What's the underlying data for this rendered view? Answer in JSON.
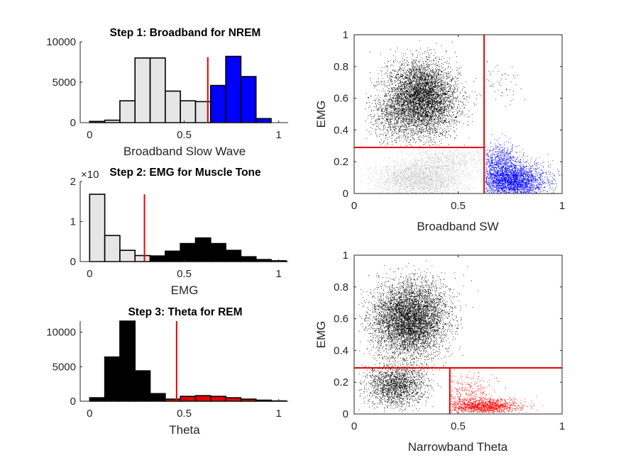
{
  "chart_data": [
    {
      "id": "h1",
      "type": "bar",
      "title": "Step 1: Broadband for NREM",
      "xlabel": "Broadband Slow Wave",
      "ylabel": "",
      "xlim": [
        -0.05,
        1.05
      ],
      "ylim": [
        0,
        10000
      ],
      "xticks": [
        "0",
        "0.5",
        "1"
      ],
      "yticks": [
        "0",
        "5000",
        "10000"
      ],
      "bin_width": 0.08,
      "threshold": 0.625,
      "threshold_color": "#e60000",
      "bins": [
        {
          "x": 0.04,
          "value": 150,
          "color": "#e6e6e6"
        },
        {
          "x": 0.12,
          "value": 300,
          "color": "#e6e6e6"
        },
        {
          "x": 0.2,
          "value": 2700,
          "color": "#e6e6e6"
        },
        {
          "x": 0.28,
          "value": 8000,
          "color": "#e6e6e6"
        },
        {
          "x": 0.36,
          "value": 8000,
          "color": "#e6e6e6"
        },
        {
          "x": 0.44,
          "value": 3900,
          "color": "#e6e6e6"
        },
        {
          "x": 0.52,
          "value": 2700,
          "color": "#e6e6e6"
        },
        {
          "x": 0.6,
          "value": 2600,
          "color": "#e6e6e6"
        },
        {
          "x": 0.68,
          "value": 4600,
          "color": "#0000ff"
        },
        {
          "x": 0.76,
          "value": 8200,
          "color": "#0000ff"
        },
        {
          "x": 0.84,
          "value": 5700,
          "color": "#0000ff"
        },
        {
          "x": 0.92,
          "value": 500,
          "color": "#0000ff"
        }
      ]
    },
    {
      "id": "h2",
      "type": "bar",
      "title": "Step 2: EMG for Muscle Tone",
      "exponent_label": "×10",
      "xlabel": "EMG",
      "ylabel": "",
      "xlim": [
        -0.05,
        1.05
      ],
      "ylim": [
        0,
        2
      ],
      "xticks": [
        "0",
        "0.5",
        "1"
      ],
      "yticks": [
        "0",
        "1",
        "2"
      ],
      "bin_width": 0.08,
      "threshold": 0.29,
      "threshold_color": "#e60000",
      "bins": [
        {
          "x": 0.04,
          "value": 1.68,
          "color": "#e6e6e6"
        },
        {
          "x": 0.12,
          "value": 0.65,
          "color": "#e6e6e6"
        },
        {
          "x": 0.2,
          "value": 0.28,
          "color": "#e6e6e6"
        },
        {
          "x": 0.28,
          "value": 0.15,
          "color": "#e6e6e6"
        },
        {
          "x": 0.36,
          "value": 0.14,
          "color": "#000000"
        },
        {
          "x": 0.44,
          "value": 0.26,
          "color": "#000000"
        },
        {
          "x": 0.52,
          "value": 0.45,
          "color": "#000000"
        },
        {
          "x": 0.6,
          "value": 0.59,
          "color": "#000000"
        },
        {
          "x": 0.68,
          "value": 0.45,
          "color": "#000000"
        },
        {
          "x": 0.76,
          "value": 0.28,
          "color": "#000000"
        },
        {
          "x": 0.84,
          "value": 0.12,
          "color": "#000000"
        },
        {
          "x": 0.92,
          "value": 0.05,
          "color": "#000000"
        },
        {
          "x": 1.0,
          "value": 0.02,
          "color": "#000000"
        }
      ]
    },
    {
      "id": "h3",
      "type": "bar",
      "title": "Step 3: Theta for REM",
      "xlabel": "Theta",
      "ylabel": "",
      "xlim": [
        -0.05,
        1.05
      ],
      "ylim": [
        0,
        11600
      ],
      "xticks": [
        "0",
        "0.5",
        "1"
      ],
      "yticks": [
        "0",
        "5000",
        "10000"
      ],
      "bin_width": 0.08,
      "threshold": 0.46,
      "threshold_color": "#e60000",
      "bins": [
        {
          "x": 0.04,
          "value": 500,
          "color": "#000000"
        },
        {
          "x": 0.12,
          "value": 6400,
          "color": "#000000"
        },
        {
          "x": 0.2,
          "value": 11600,
          "color": "#000000"
        },
        {
          "x": 0.28,
          "value": 4400,
          "color": "#000000"
        },
        {
          "x": 0.36,
          "value": 1100,
          "color": "#000000"
        },
        {
          "x": 0.44,
          "value": 300,
          "color": "#e60000"
        },
        {
          "x": 0.52,
          "value": 700,
          "color": "#e60000"
        },
        {
          "x": 0.6,
          "value": 800,
          "color": "#e60000"
        },
        {
          "x": 0.68,
          "value": 700,
          "color": "#e60000"
        },
        {
          "x": 0.76,
          "value": 500,
          "color": "#e60000"
        },
        {
          "x": 0.84,
          "value": 300,
          "color": "#e60000"
        },
        {
          "x": 0.92,
          "value": 150,
          "color": "#e60000"
        },
        {
          "x": 1.0,
          "value": 50,
          "color": "#e60000"
        }
      ]
    },
    {
      "id": "s1",
      "type": "scatter",
      "title": "",
      "xlabel": "Broadband SW",
      "ylabel": "EMG",
      "xlim": [
        0,
        1
      ],
      "ylim": [
        0,
        1
      ],
      "xticks": [
        "0",
        "0.5",
        "1"
      ],
      "yticks": [
        "0",
        "0.2",
        "0.4",
        "0.6",
        "0.8",
        "1"
      ],
      "vline": {
        "x": 0.625,
        "from": 0,
        "to": 1
      },
      "hline": {
        "y": 0.29,
        "from": 0,
        "to": 0.625
      },
      "line_color": "#e60000",
      "series": [
        {
          "color": "#000000",
          "clusters": [
            {
              "cx": 0.33,
              "cy": 0.58,
              "sx": 0.085,
              "sy": 0.11,
              "n": 4500
            },
            {
              "cx": 0.3,
              "cy": 0.7,
              "sx": 0.07,
              "sy": 0.09,
              "n": 900
            },
            {
              "cx": 0.18,
              "cy": 0.48,
              "sx": 0.06,
              "sy": 0.08,
              "n": 500
            }
          ],
          "xmin": 0.05,
          "xmax": 0.62,
          "ymin": 0.295,
          "ymax": 0.99
        },
        {
          "color": "#c8c8c8",
          "clusters": [
            {
              "cx": 0.32,
              "cy": 0.09,
              "sx": 0.11,
              "sy": 0.06,
              "n": 2600
            },
            {
              "cx": 0.45,
              "cy": 0.22,
              "sx": 0.1,
              "sy": 0.05,
              "n": 800
            }
          ],
          "xmin": 0.02,
          "xmax": 0.62,
          "ymin": 0.0,
          "ymax": 0.285
        },
        {
          "color": "#0000ff",
          "clusters": [
            {
              "cx": 0.76,
              "cy": 0.08,
              "sx": 0.08,
              "sy": 0.055,
              "n": 3000
            },
            {
              "cx": 0.7,
              "cy": 0.2,
              "sx": 0.05,
              "sy": 0.06,
              "n": 700
            },
            {
              "cx": 0.7,
              "cy": 0.7,
              "sx": 0.05,
              "sy": 0.07,
              "n": 60
            }
          ],
          "xmin": 0.63,
          "xmax": 1.0,
          "ymin": 0.0,
          "ymax": 0.85
        }
      ]
    },
    {
      "id": "s2",
      "type": "scatter",
      "title": "",
      "xlabel": "Narrowband Theta",
      "ylabel": "EMG",
      "xlim": [
        0,
        1
      ],
      "ylim": [
        0,
        1
      ],
      "xticks": [
        "0",
        "0.5",
        "1"
      ],
      "yticks": [
        "0",
        "0.2",
        "0.4",
        "0.6",
        "0.8",
        "1"
      ],
      "hline": {
        "y": 0.29,
        "from": 0,
        "to": 1
      },
      "vline": {
        "x": 0.46,
        "from": 0,
        "to": 0.29
      },
      "line_color": "#e60000",
      "series": [
        {
          "color": "#000000",
          "clusters": [
            {
              "cx": 0.26,
              "cy": 0.58,
              "sx": 0.09,
              "sy": 0.11,
              "n": 4800
            },
            {
              "cx": 0.2,
              "cy": 0.18,
              "sx": 0.07,
              "sy": 0.07,
              "n": 1800
            },
            {
              "cx": 0.3,
              "cy": 0.7,
              "sx": 0.08,
              "sy": 0.09,
              "n": 900
            }
          ],
          "xmin": 0.02,
          "xmax": 0.6,
          "ymin": 0.02,
          "ymax": 0.99
        },
        {
          "color": "#ff0000",
          "clusters": [
            {
              "cx": 0.62,
              "cy": 0.05,
              "sx": 0.09,
              "sy": 0.025,
              "n": 1500
            },
            {
              "cx": 0.55,
              "cy": 0.14,
              "sx": 0.06,
              "sy": 0.06,
              "n": 300
            }
          ],
          "xmin": 0.462,
          "xmax": 1.0,
          "ymin": 0.01,
          "ymax": 0.285
        }
      ]
    }
  ]
}
